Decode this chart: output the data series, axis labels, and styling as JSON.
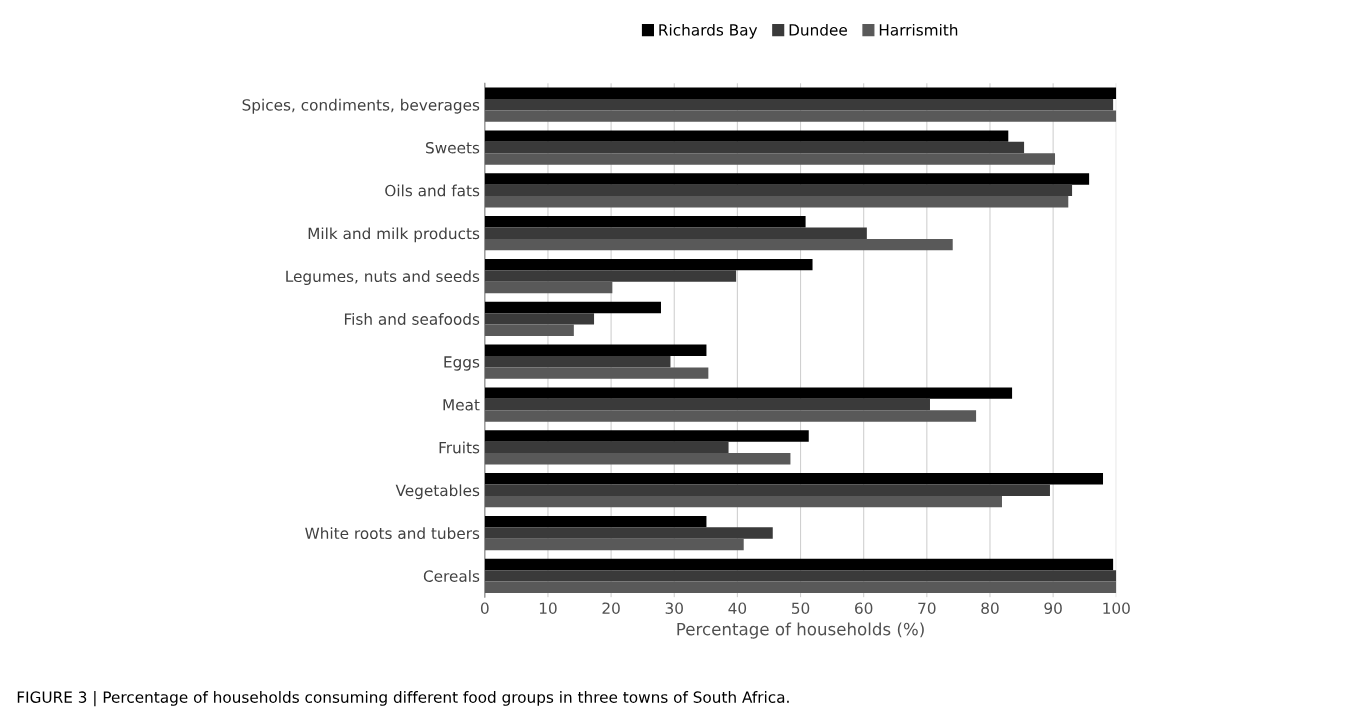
{
  "chart_data": {
    "type": "bar",
    "orientation": "horizontal",
    "categories": [
      "Spices, condiments, beverages",
      "Sweets",
      "Oils and fats",
      "Milk and milk products",
      "Legumes, nuts and seeds",
      "Fish and seafoods",
      "Eggs",
      "Meat",
      "Fruits",
      "Vegetables",
      "White roots and tubers",
      "Cereals"
    ],
    "series": [
      {
        "name": "Richards Bay",
        "color": "#000000",
        "values": [
          100,
          82.9,
          95.7,
          50.8,
          51.9,
          27.9,
          35.1,
          83.5,
          51.3,
          97.9,
          35.1,
          99.5
        ]
      },
      {
        "name": "Dundee",
        "color": "#3a3a3a",
        "values": [
          99.5,
          85.4,
          93.0,
          60.5,
          39.8,
          17.3,
          29.4,
          70.5,
          38.6,
          89.5,
          45.6,
          100
        ]
      },
      {
        "name": "Harrismith",
        "color": "#595959",
        "values": [
          100,
          90.3,
          92.4,
          74.1,
          20.2,
          14.1,
          35.4,
          77.8,
          48.4,
          81.9,
          41.0,
          100
        ]
      }
    ],
    "xlabel": "Percentage of households (%)",
    "xlim": [
      0,
      100
    ],
    "xticks": [
      0,
      10,
      20,
      30,
      40,
      50,
      60,
      70,
      80,
      90,
      100
    ],
    "grid": "x",
    "legend": "top",
    "annotations": [
      "FIGURE 3 | Percentage of households consuming different food groups in three towns of South Africa."
    ]
  }
}
